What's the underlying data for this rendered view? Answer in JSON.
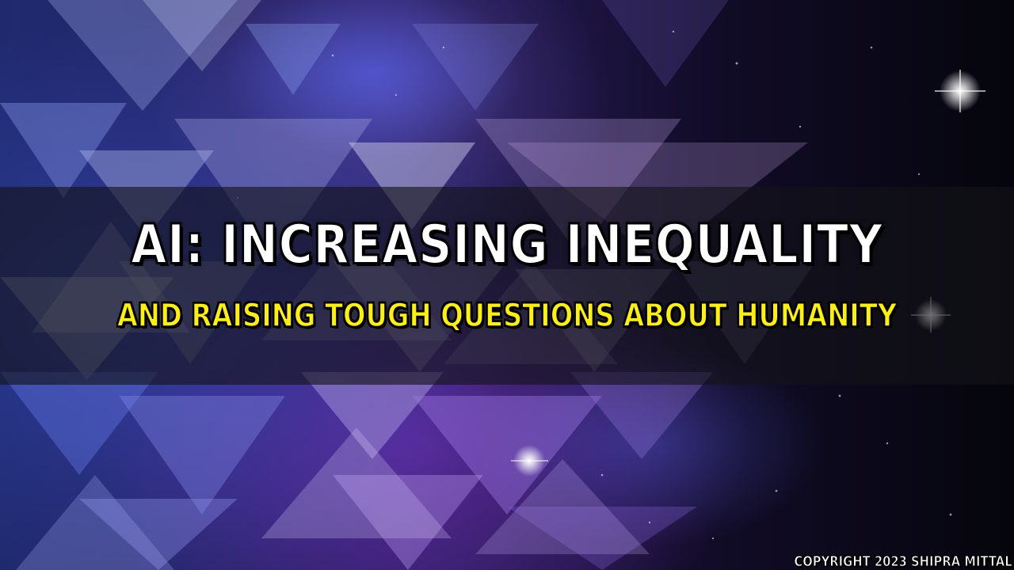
{
  "thumbnail": {
    "title": "AI: INCREASING INEQUALITY",
    "subtitle": "AND RAISING TOUGH QUESTIONS ABOUT HUMANITY",
    "copyright": "COPYRIGHT 2023 SHIPRA MITTAL"
  },
  "colors": {
    "title_text": "#ffffff",
    "subtitle_text": "#fff200",
    "outline": "#000000",
    "background_blue": "#2a3a9a",
    "background_purple": "#6a3aa8",
    "background_dark": "#05050c"
  },
  "background": {
    "description_icons": [
      "triangle-pattern",
      "sparkle-star"
    ]
  }
}
